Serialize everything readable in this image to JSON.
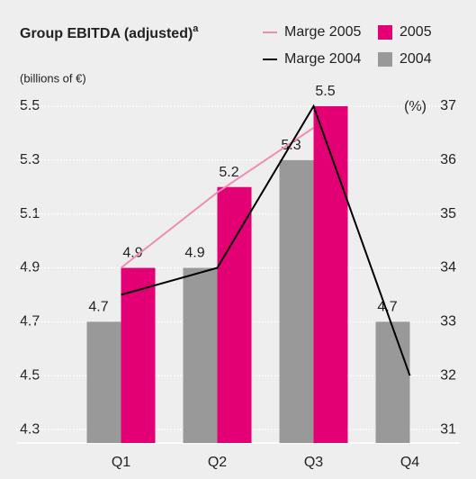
{
  "chart_data": {
    "type": "bar",
    "title": "Group EBITDA (adjusted)",
    "title_note": "a",
    "ylabel": "(billions of €)",
    "y2label": "(%)",
    "categories": [
      "Q1",
      "Q2",
      "Q3",
      "Q4"
    ],
    "series": [
      {
        "name": "Marge 2005",
        "type": "line",
        "axis": "y2",
        "color": "#f08cb4",
        "values": [
          34.0,
          35.4,
          36.6,
          null
        ]
      },
      {
        "name": "Marge 2004",
        "type": "line",
        "axis": "y2",
        "color": "#000000",
        "values": [
          33.5,
          34.0,
          37.0,
          32.0
        ]
      },
      {
        "name": "2005",
        "type": "bar",
        "color": "#e20074",
        "values": [
          4.9,
          5.2,
          5.5,
          null
        ]
      },
      {
        "name": "2004",
        "type": "bar",
        "color": "#999999",
        "values": [
          4.7,
          4.9,
          5.3,
          4.7
        ]
      }
    ],
    "ylim": [
      4.25,
      5.55
    ],
    "yticks": [
      4.3,
      4.5,
      4.7,
      4.9,
      5.1,
      5.3,
      5.5
    ],
    "y2lim": [
      30.75,
      37.25
    ],
    "y2ticks": [
      31,
      32,
      33,
      34,
      35,
      36,
      37
    ],
    "grid": true
  }
}
